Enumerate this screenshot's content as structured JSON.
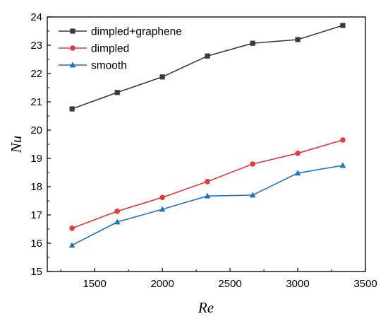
{
  "chart_data": {
    "type": "line",
    "title": "",
    "xlabel": "Re",
    "ylabel": "Nu",
    "xlim": [
      1150,
      3500
    ],
    "ylim": [
      15,
      24
    ],
    "xticks": [
      1500,
      2000,
      2500,
      3000,
      3500
    ],
    "yticks": [
      15,
      16,
      17,
      18,
      19,
      20,
      21,
      22,
      23,
      24
    ],
    "grid": false,
    "legend_position": "top-left",
    "x": [
      1333,
      1667,
      2000,
      2333,
      2667,
      3000,
      3333
    ],
    "series": [
      {
        "name": "dimpled+graphene",
        "color": "#3a3a3a",
        "marker": "square",
        "values": [
          20.75,
          21.33,
          21.88,
          22.62,
          23.07,
          23.2,
          23.7
        ]
      },
      {
        "name": "dimpled",
        "color": "#e8383b",
        "marker": "circle",
        "values": [
          16.53,
          17.13,
          17.62,
          18.18,
          18.8,
          19.18,
          19.65
        ]
      },
      {
        "name": "smooth",
        "color": "#1f73c4",
        "marker": "triangle",
        "values": [
          15.93,
          16.75,
          17.2,
          17.67,
          17.7,
          18.48,
          18.75
        ]
      }
    ]
  }
}
